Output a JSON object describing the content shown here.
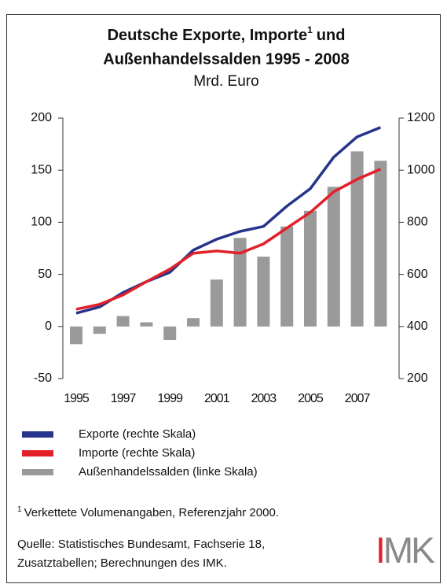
{
  "chart_data": {
    "type": "bar",
    "title": "Deutsche Exporte, Importe",
    "title_footnote_mark": "1",
    "title_end": "und",
    "title_line2": "Außenhandelssalden 1995 - 2008",
    "subtitle": "Mrd. Euro",
    "categories": [
      "1995",
      null,
      "1997",
      null,
      "1999",
      null,
      "2001",
      null,
      "2003",
      null,
      "2005",
      null,
      "2007",
      null
    ],
    "series": [
      {
        "name": "Exporte (rechte Skala)",
        "color": "#27348b",
        "type": "line",
        "axis": "y2",
        "values": [
          451,
          475,
          530,
          572,
          608,
          693,
          735,
          765,
          784,
          862,
          929,
          1050,
          1128,
          1164
        ]
      },
      {
        "name": "Importe (rechte Skala)",
        "color": "#e3202a",
        "type": "line",
        "axis": "y2",
        "values": [
          466,
          485,
          521,
          572,
          620,
          681,
          690,
          681,
          717,
          778,
          838,
          917,
          965,
          1004
        ]
      },
      {
        "name": "Außenhandelssalden (linke Skala)",
        "color": "#9a9a9a",
        "type": "bar",
        "axis": "y",
        "values": [
          -17,
          -7,
          10,
          4,
          -13,
          8,
          45,
          85,
          67,
          96,
          111,
          134,
          168,
          159
        ]
      }
    ],
    "ylim": [
      -50,
      200
    ],
    "yticks": [
      -50,
      0,
      50,
      100,
      150,
      200
    ],
    "y2lim": [
      200,
      1200
    ],
    "y2ticks": [
      200,
      400,
      600,
      800,
      1000,
      1200
    ],
    "grid": false,
    "footnote_mark": "1",
    "footnote": "Verkettete Volumenangaben, Referenzjahr 2000.",
    "source": [
      "Quelle: Statistisches Bundesamt, Fachserie 18,",
      "Zusatztabellen; Berechnungen des IMK."
    ],
    "logo": "IMK"
  }
}
